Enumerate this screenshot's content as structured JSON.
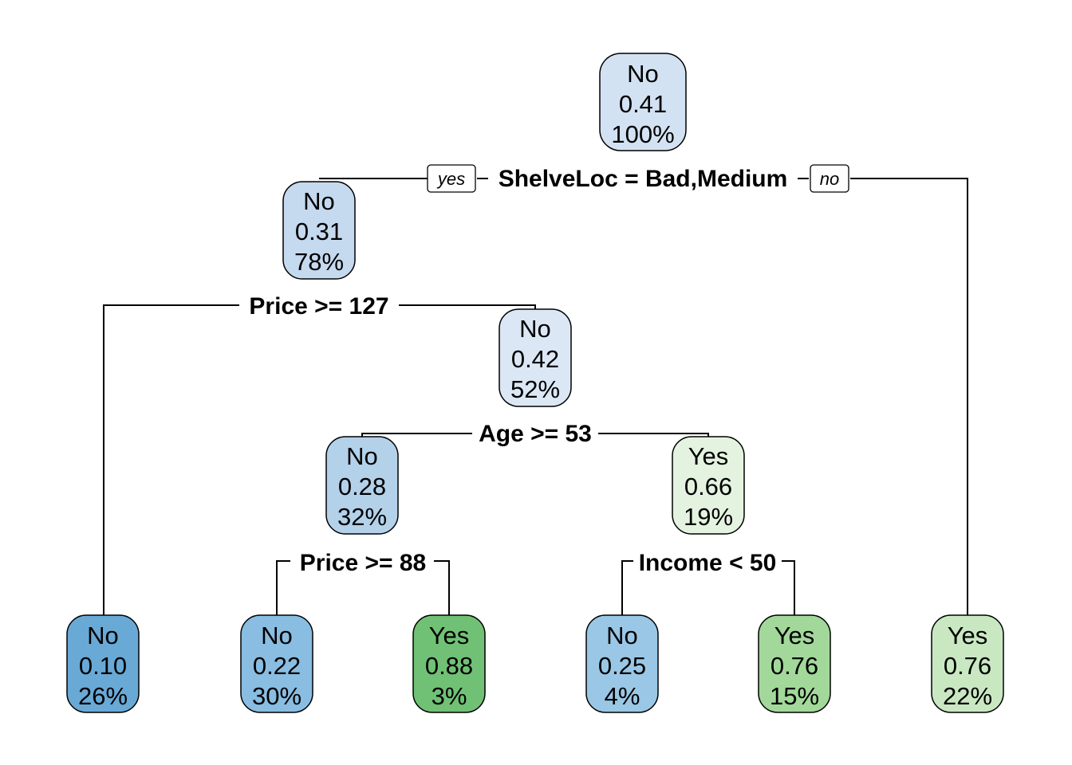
{
  "tree": {
    "nodes": [
      {
        "id": "n1",
        "class": "No",
        "prob": "0.41",
        "pct": "100%",
        "color": "#d3e2f2"
      },
      {
        "id": "n2",
        "class": "No",
        "prob": "0.31",
        "pct": "78%",
        "color": "#c5d9ef"
      },
      {
        "id": "n3",
        "class": "No",
        "prob": "0.42",
        "pct": "52%",
        "color": "#dbe7f5"
      },
      {
        "id": "n4",
        "class": "No",
        "prob": "0.28",
        "pct": "32%",
        "color": "#b4d1ea"
      },
      {
        "id": "n5",
        "class": "Yes",
        "prob": "0.66",
        "pct": "19%",
        "color": "#e4f3e0"
      },
      {
        "id": "n6",
        "class": "No",
        "prob": "0.10",
        "pct": "26%",
        "color": "#69a9d6"
      },
      {
        "id": "n7",
        "class": "No",
        "prob": "0.22",
        "pct": "30%",
        "color": "#89bde1"
      },
      {
        "id": "n8",
        "class": "Yes",
        "prob": "0.88",
        "pct": "3%",
        "color": "#70c175"
      },
      {
        "id": "n9",
        "class": "No",
        "prob": "0.25",
        "pct": "4%",
        "color": "#9ac7e5"
      },
      {
        "id": "n10",
        "class": "Yes",
        "prob": "0.76",
        "pct": "15%",
        "color": "#a2d89a"
      },
      {
        "id": "n11",
        "class": "Yes",
        "prob": "0.76",
        "pct": "22%",
        "color": "#c9e8c2"
      }
    ],
    "splits": [
      {
        "id": "s1",
        "label": "ShelveLoc = Bad,Medium"
      },
      {
        "id": "s2",
        "label": "Price >= 127"
      },
      {
        "id": "s3",
        "label": "Age >= 53"
      },
      {
        "id": "s4",
        "label": "Price >= 88"
      },
      {
        "id": "s5",
        "label": "Income < 50"
      }
    ],
    "branch_labels": {
      "yes": "yes",
      "no": "no"
    }
  }
}
